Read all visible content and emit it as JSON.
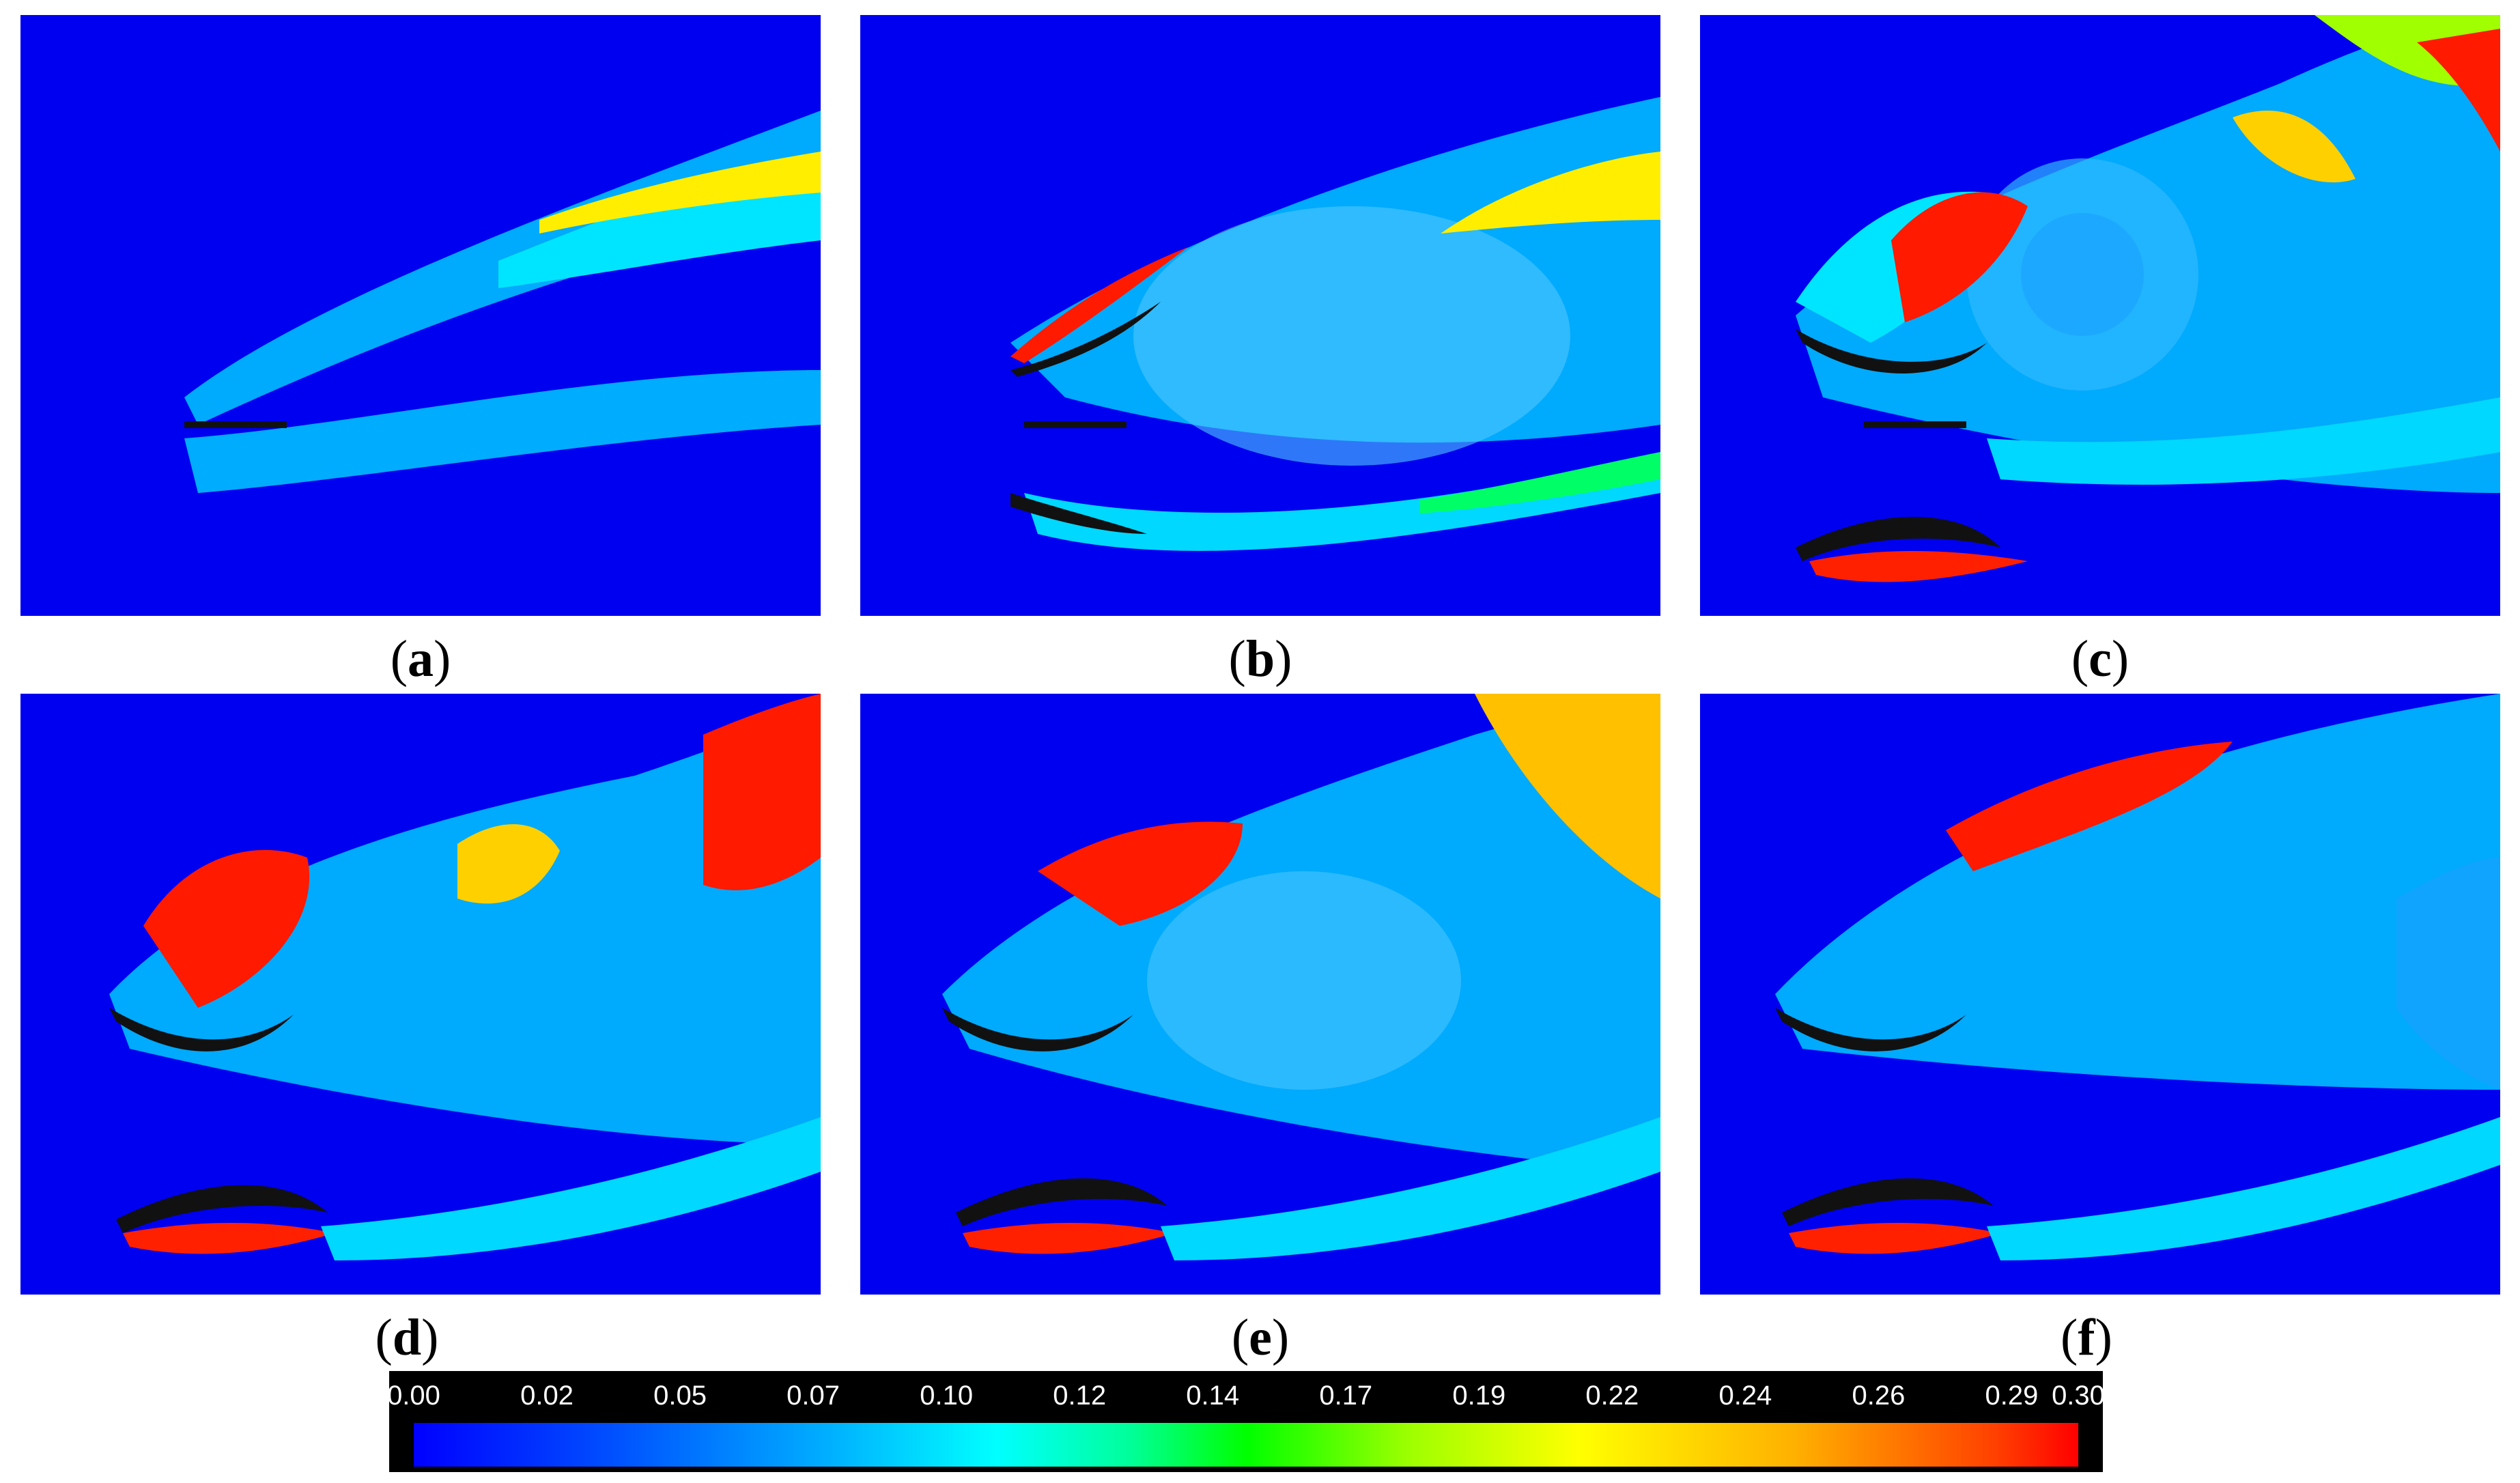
{
  "panels": [
    {
      "id": "a",
      "label": "a"
    },
    {
      "id": "b",
      "label": "b"
    },
    {
      "id": "c",
      "label": "c"
    },
    {
      "id": "d",
      "label": "d"
    },
    {
      "id": "e",
      "label": "e"
    },
    {
      "id": "f",
      "label": "f"
    }
  ],
  "colorbar": {
    "ticks": [
      "0.00",
      "0.02",
      "0.05",
      "0.07",
      "0.10",
      "0.12",
      "0.14",
      "0.17",
      "0.19",
      "0.22",
      "0.24",
      "0.26",
      "0.29",
      "0.30"
    ],
    "colors": [
      "#0000ff",
      "#00b0ff",
      "#00ffff",
      "#00ff00",
      "#ffff00",
      "#ff8000",
      "#ff0000"
    ]
  }
}
